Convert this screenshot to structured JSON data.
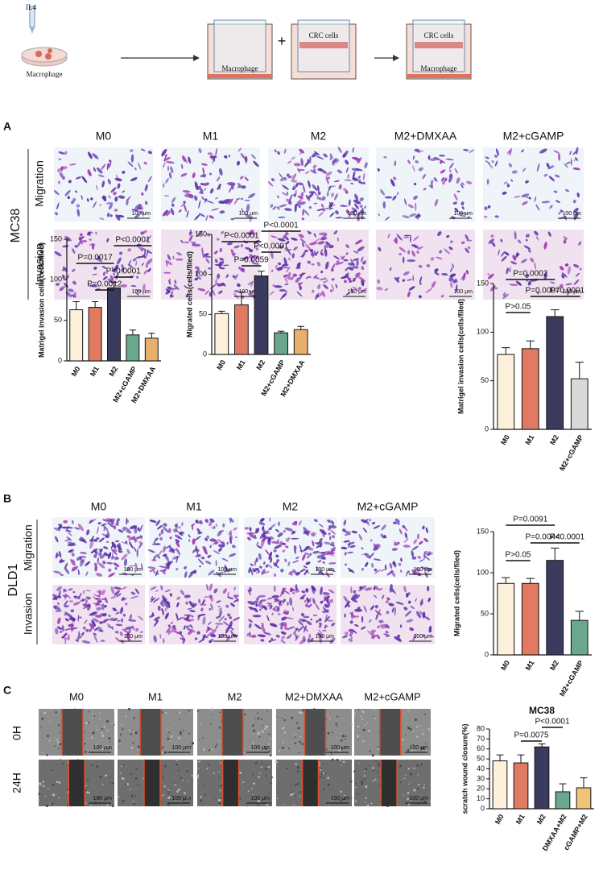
{
  "schematic": {
    "reagent": "IL4",
    "labels": [
      "Macrophage",
      "Macrophage",
      "CRC cells",
      "CRC cells",
      "Macrophage"
    ],
    "plus": "+"
  },
  "panel_a": {
    "label": "A",
    "columns": [
      "M0",
      "M1",
      "M2",
      "M2+DMXAA",
      "M2+cGAMP"
    ],
    "group": "MC38",
    "rows": [
      "Migration",
      "Invasion"
    ],
    "scale_bars": [
      [
        "100 μm",
        "100 μm",
        "100 μm",
        "100 μm",
        "100 μm"
      ],
      [
        "100 μm",
        "100 μm",
        "100 μm",
        "100 μm",
        "100 μm"
      ]
    ]
  },
  "panel_b": {
    "label": "B",
    "columns": [
      "M0",
      "M1",
      "M2",
      "M2+cGAMP"
    ],
    "group": "DLD1",
    "rows": [
      "Migration",
      "Invasion"
    ],
    "scale_bars": [
      [
        "100 μm",
        "100 μm",
        "100 μm",
        "100 μm"
      ],
      [
        "100 μm",
        "100 μm",
        "100 μm",
        "100 μm"
      ]
    ]
  },
  "panel_c": {
    "label": "C",
    "columns": [
      "M0",
      "M1",
      "M2",
      "M2+DMXAA",
      "M2+cGAMP"
    ],
    "rows": [
      "0H",
      "24H"
    ],
    "scale_bars": [
      [
        "100 μm",
        "100 μm",
        "100 μm",
        "100 μm",
        "100 μm"
      ],
      [
        "100 μm",
        "100 μm",
        "100 μm",
        "100 μm",
        "100 μm"
      ]
    ]
  },
  "chart_data": [
    {
      "type": "bar",
      "y_label": "Matrigel invasion cells(cells/filed)",
      "categories": [
        "M0",
        "M1",
        "M2",
        "M2+cGAMP",
        "M2+DMXAA"
      ],
      "values": [
        63,
        66,
        90,
        32,
        28
      ],
      "errors": [
        10,
        7,
        7,
        6,
        6
      ],
      "colors": [
        "#fdf1dc",
        "#e07a63",
        "#3b3b60",
        "#6aa88e",
        "#e8b06a"
      ],
      "ylim": [
        0,
        150
      ],
      "yticks": [
        0,
        50,
        100,
        150
      ],
      "annotations": [
        "P=0.0017",
        "P=0.0012",
        "P<0.0001",
        "P<0.0001"
      ]
    },
    {
      "type": "bar",
      "y_label": "Migrated cells(cells/filed)",
      "categories": [
        "M0",
        "M1",
        "M2",
        "M2+cGAMP",
        "M2+DMXAA"
      ],
      "values": [
        51,
        62,
        98,
        27,
        31
      ],
      "errors": [
        3,
        16,
        6,
        2,
        4
      ],
      "colors": [
        "#fdf1dc",
        "#e07a63",
        "#3b3b60",
        "#6aa88e",
        "#e8b06a"
      ],
      "ylim": [
        0,
        150
      ],
      "yticks": [
        0,
        50,
        100,
        150
      ],
      "annotations": [
        "P<0.0001",
        "P=0.0059",
        "P<0.0001",
        "P<0.0001"
      ]
    },
    {
      "type": "bar",
      "y_label": "Matrigel invasion cells(cells/filed)",
      "categories": [
        "M0",
        "M1",
        "M2",
        "M2+cGAMP"
      ],
      "values": [
        77,
        83,
        116,
        52
      ],
      "errors": [
        7,
        8,
        7,
        17
      ],
      "colors": [
        "#fdf1dc",
        "#e07a63",
        "#3b3b60",
        "#d9d9d9"
      ],
      "ylim": [
        0,
        150
      ],
      "yticks": [
        0,
        50,
        100,
        150
      ],
      "annotations": [
        "P=0.0002",
        "P>0.05",
        "P=0.0007",
        "P=0.0001"
      ]
    },
    {
      "type": "bar",
      "y_label": "Migrated cells(cells/filed)",
      "categories": [
        "M0",
        "M1",
        "M2",
        "M2+cGAMP"
      ],
      "values": [
        87,
        87,
        115,
        42
      ],
      "errors": [
        7,
        6,
        15,
        11
      ],
      "colors": [
        "#fdf1dc",
        "#e07a63",
        "#3b3b60",
        "#6aa88e"
      ],
      "ylim": [
        0,
        150
      ],
      "yticks": [
        0,
        50,
        100,
        150
      ],
      "annotations": [
        "P=0.0091",
        "P=0.0044",
        "P>0.05",
        "P<0.0001"
      ]
    },
    {
      "type": "bar",
      "title": "MC38",
      "y_label": "scratch wound closure(%)",
      "categories": [
        "M0",
        "M1",
        "M2",
        "DMXAA+M2",
        "cGAMP+M2"
      ],
      "values": [
        48,
        46,
        62,
        17,
        21
      ],
      "errors": [
        6,
        8,
        3,
        8,
        10
      ],
      "colors": [
        "#fdf1dc",
        "#e07a63",
        "#3b3b60",
        "#6aa88e",
        "#f0c477"
      ],
      "ylim": [
        0,
        80
      ],
      "yticks": [
        0,
        10,
        20,
        30,
        40,
        50,
        60,
        70,
        80
      ],
      "annotations": [
        "P=0.0075",
        "P<0.0001"
      ]
    }
  ]
}
